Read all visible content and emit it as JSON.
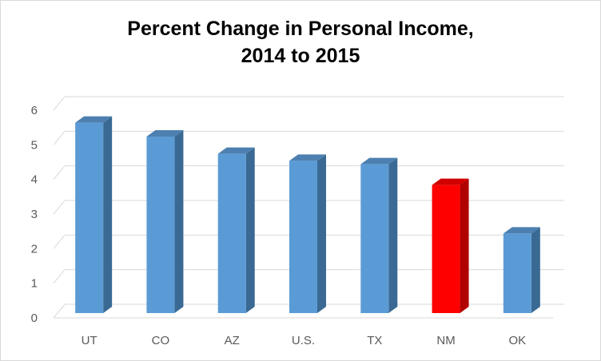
{
  "chart_data": {
    "type": "bar",
    "title": "Percent Change in Personal Income,",
    "subtitle": "2014 to 2015",
    "xlabel": "",
    "ylabel": "",
    "categories": [
      "UT",
      "CO",
      "AZ",
      "U.S.",
      "TX",
      "NM",
      "OK"
    ],
    "series": [
      {
        "values": [
          5.5,
          5.1,
          4.6,
          4.4,
          4.3,
          3.7,
          2.3
        ]
      }
    ],
    "highlight": "NM",
    "ylim": [
      0,
      6
    ],
    "yticks": [
      "0",
      "1",
      "2",
      "3",
      "4",
      "5",
      "6"
    ],
    "grid": true,
    "legend": "none",
    "style": "3d",
    "colors": {
      "bar_front": "#5b9bd5",
      "bar_side": "#3a6a94",
      "bar_top": "#4d80b0",
      "highlight_front": "#ff0000",
      "highlight_side": "#b00000",
      "highlight_top": "#d00000",
      "gridline": "#d9d9d9",
      "tick_text": "#595959"
    }
  }
}
